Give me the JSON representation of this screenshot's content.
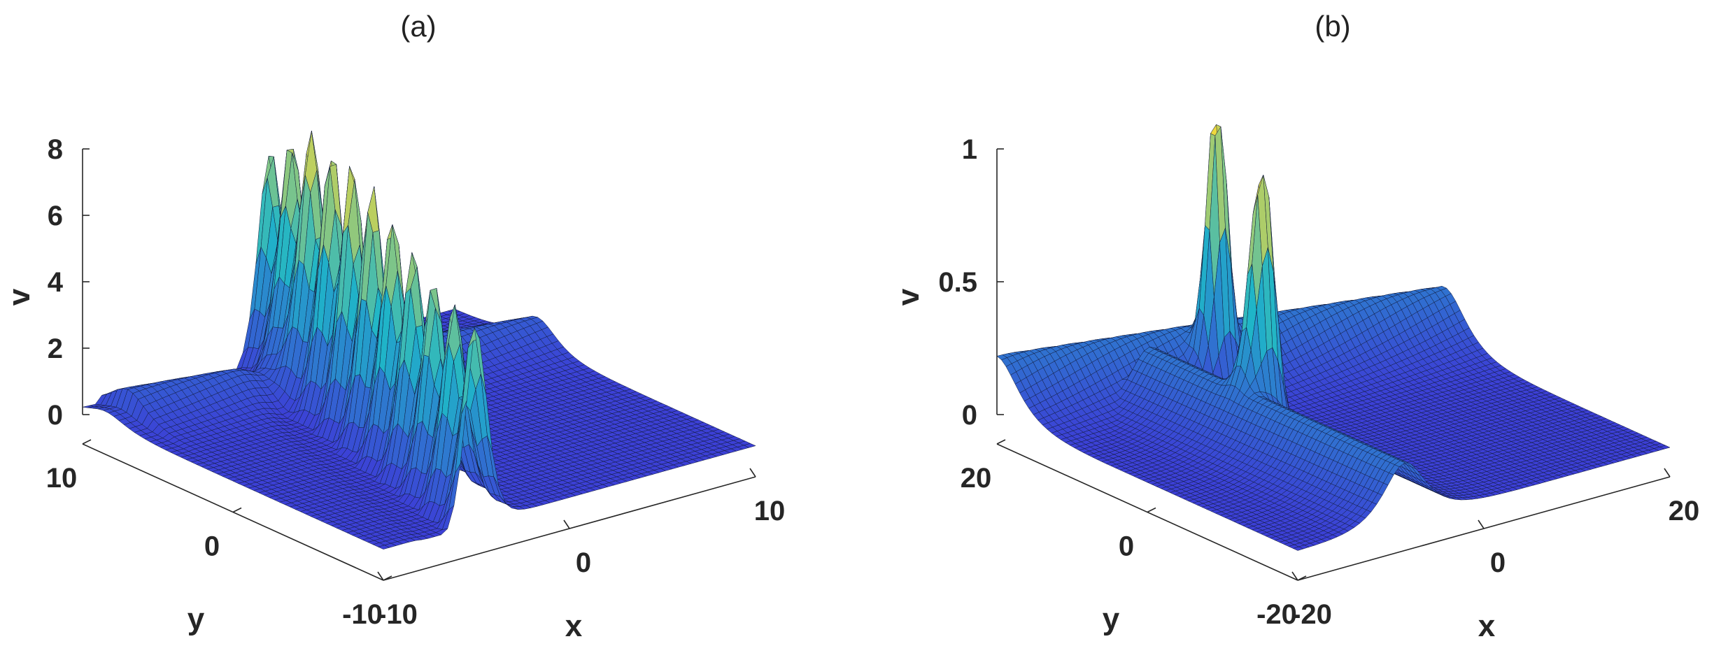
{
  "chart_data": [
    {
      "type": "surface",
      "title": "(a)",
      "xlabel": "x",
      "ylabel": "y",
      "zlabel": "v",
      "xlim": [
        -10,
        10
      ],
      "ylim": [
        -10,
        10
      ],
      "zlim": [
        0,
        8
      ],
      "x_ticks": [
        "-10",
        "0",
        "10"
      ],
      "y_ticks": [
        "-10",
        "0",
        "10"
      ],
      "z_ticks": [
        "0",
        "2",
        "4",
        "6",
        "8"
      ],
      "colormap": "parula",
      "surface_color_low": "#3c3fd6",
      "surface_color_mid": "#1fb5c8",
      "surface_color_high": "#f4d93a",
      "features": {
        "peak_max": 8.4,
        "ridge_background": 0.9,
        "peak_count": 2
      }
    },
    {
      "type": "surface",
      "title": "(b)",
      "xlabel": "x",
      "ylabel": "y",
      "zlabel": "v",
      "xlim": [
        -20,
        20
      ],
      "ylim": [
        -20,
        20
      ],
      "zlim": [
        0,
        1
      ],
      "x_ticks": [
        "-20",
        "0",
        "20"
      ],
      "y_ticks": [
        "-20",
        "0",
        "20"
      ],
      "z_ticks": [
        "0",
        "0.5",
        "1"
      ],
      "colormap": "parula",
      "surface_color_low": "#3c3fd6",
      "surface_color_mid": "#1fb5c8",
      "surface_color_high": "#f4d93a",
      "features": {
        "peak_max": 1.0,
        "ridge_background": 0.2,
        "peak_count": 2
      }
    }
  ]
}
